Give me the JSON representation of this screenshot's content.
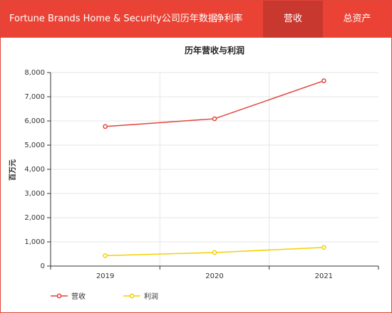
{
  "header": {
    "title": "Fortune Brands Home & Security公司历年数据",
    "tabs": [
      {
        "label": "净利率",
        "active": false
      },
      {
        "label": "营收",
        "active": true
      },
      {
        "label": "总资产",
        "active": false
      }
    ]
  },
  "colors": {
    "header_bg": "#ea4335",
    "tab_active_bg": "#c8382e"
  },
  "chart_data": {
    "type": "line",
    "title": "历年营收与利润",
    "ylabel": "百万元",
    "xlabel": "",
    "categories": [
      "2019",
      "2020",
      "2021"
    ],
    "ylim": [
      0,
      8000
    ],
    "yticks": [
      "0",
      "1,000",
      "2,000",
      "3,000",
      "4,000",
      "5,000",
      "6,000",
      "7,000",
      "8,000"
    ],
    "grid": true,
    "legend": "bottom-left",
    "series": [
      {
        "name": "营收",
        "color": "#e0443a",
        "values": [
          5770,
          6090,
          7660
        ]
      },
      {
        "name": "利润",
        "color": "#f4d000",
        "values": [
          430,
          560,
          770
        ]
      }
    ]
  }
}
